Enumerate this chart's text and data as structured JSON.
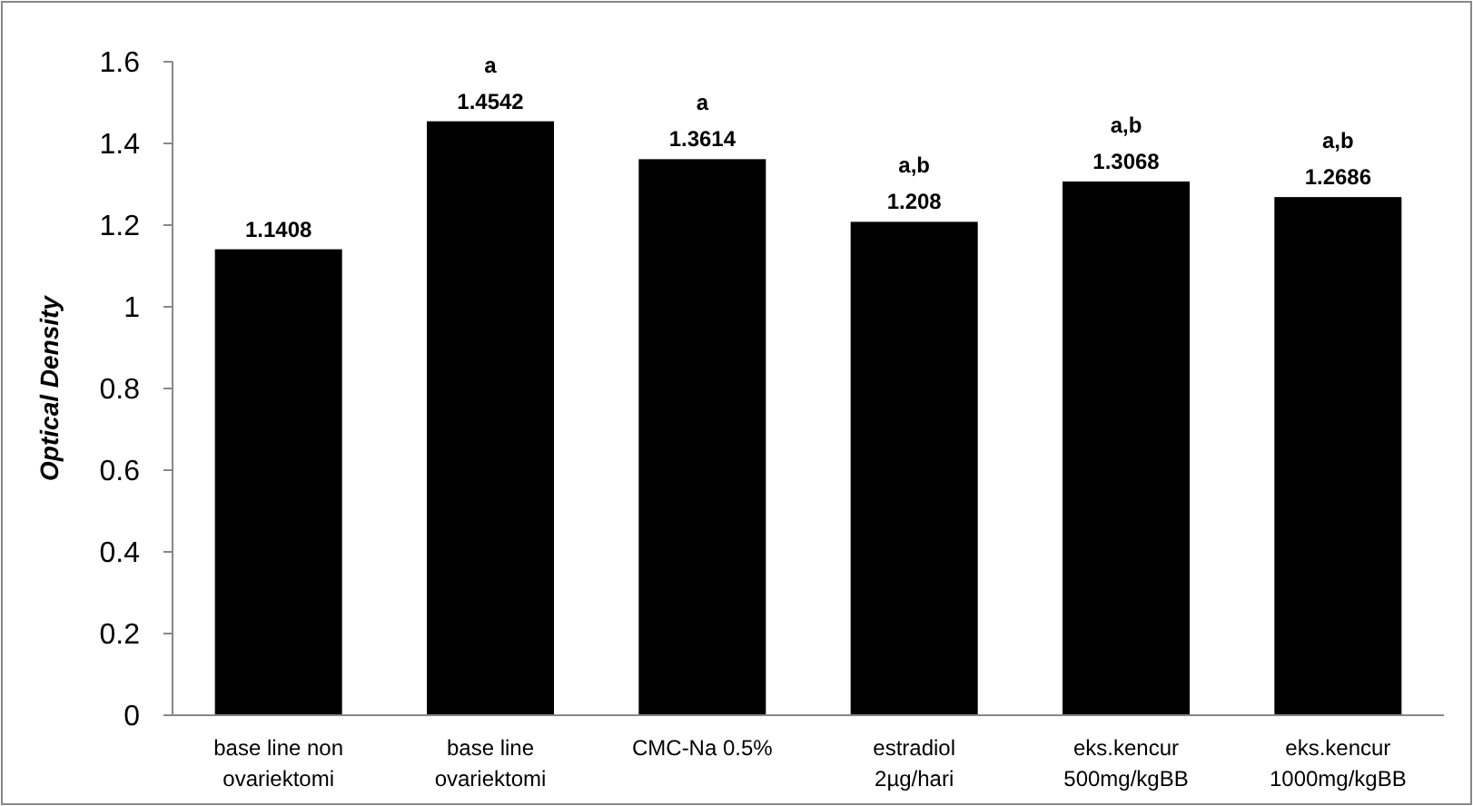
{
  "chart_data": {
    "type": "bar",
    "ylabel": "Optical Density",
    "categories": [
      "base line non ovariektomi",
      "base line ovariektomi",
      "CMC-Na 0.5%",
      "estradiol 2µg/hari",
      "eks.kencur 500mg/kgBB",
      "eks.kencur 1000mg/kgBB"
    ],
    "values": [
      1.1408,
      1.4542,
      1.3614,
      1.208,
      1.3068,
      1.2686
    ],
    "color": "#000000",
    "data_labels": true,
    "ylim": [
      0,
      1.6
    ],
    "yticks": [
      0,
      0.2,
      0.4,
      0.6,
      0.8,
      1,
      1.2,
      1.4,
      1.6
    ],
    "grid": false,
    "annotations": [
      {
        "text": "a",
        "x": "base line ovariektomi",
        "y": 1.4542
      },
      {
        "text": "a",
        "x": "CMC-Na 0.5%",
        "y": 1.3614
      },
      {
        "text": "a,b",
        "x": "estradiol 2µg/hari",
        "y": 1.208
      },
      {
        "text": "a,b",
        "x": "eks.kencur 500mg/kgBB",
        "y": 1.3068
      },
      {
        "text": "a,b",
        "x": "eks.kencur 1000mg/kgBB",
        "y": 1.2686
      }
    ]
  }
}
